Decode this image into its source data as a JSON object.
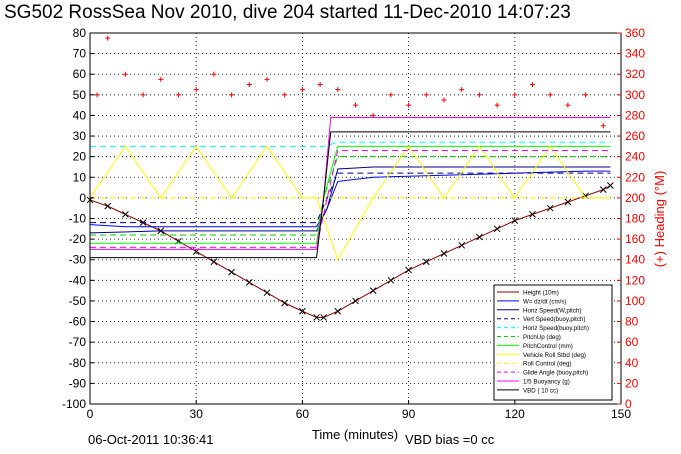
{
  "chart_data": {
    "type": "line",
    "title": "SG502 RossSea Nov 2010, dive 204 started 11-Dec-2010 14:07:23",
    "xlabel": "Time (minutes)",
    "ylabel_right": "(+) Heading (°M)",
    "xlim": [
      0,
      150
    ],
    "ylim_left": [
      -100,
      80
    ],
    "ylim_right": [
      0,
      360
    ],
    "xticks": [
      0,
      30,
      60,
      90,
      120,
      150
    ],
    "yticks_left": [
      -100,
      -90,
      -80,
      -70,
      -60,
      -50,
      -40,
      -30,
      -20,
      -10,
      0,
      10,
      20,
      30,
      40,
      50,
      60,
      70,
      80
    ],
    "yticks_right": [
      0,
      20,
      40,
      60,
      80,
      100,
      120,
      140,
      160,
      180,
      200,
      220,
      240,
      260,
      280,
      300,
      320,
      340,
      360
    ],
    "grid": true,
    "legend_position": "bottom-right",
    "footer_left": "06-Oct-2011 10:36:41",
    "footer_right": "VBD bias =0 cc",
    "series": [
      {
        "name": "Height (10m)",
        "color": "#8b0000",
        "style": "solid",
        "x": [
          0,
          5,
          10,
          15,
          20,
          25,
          30,
          35,
          40,
          45,
          50,
          55,
          60,
          64,
          66,
          70,
          75,
          80,
          85,
          90,
          95,
          100,
          105,
          110,
          115,
          120,
          125,
          130,
          135,
          140,
          145,
          147
        ],
        "y": [
          -1,
          -4,
          -8,
          -12,
          -16,
          -21,
          -26,
          -31,
          -36,
          -41,
          -46,
          -51,
          -55,
          -58,
          -58,
          -55,
          -50,
          -45,
          -40,
          -35,
          -31,
          -27,
          -23,
          -19,
          -15,
          -11,
          -8,
          -5,
          -2,
          1,
          4,
          6
        ]
      },
      {
        "name": "W= dz/dt (cm/s)",
        "color": "#0000ff",
        "style": "solid",
        "x": [
          0,
          10,
          20,
          40,
          60,
          64,
          67,
          70,
          80,
          100,
          120,
          140,
          147
        ],
        "y": [
          -13,
          -14,
          -14,
          -14,
          -14,
          -14,
          -5,
          8,
          10,
          11,
          12,
          13,
          13
        ]
      },
      {
        "name": "Horiz Speed(W,pitch)",
        "color": "#00008b",
        "style": "solid",
        "x": [
          0,
          20,
          40,
          60,
          64,
          67,
          70,
          80,
          100,
          120,
          147
        ],
        "y": [
          -17,
          -16,
          -16,
          -16,
          -16,
          -5,
          14,
          15,
          15,
          15,
          15
        ]
      },
      {
        "name": "Vert Speed(buoy,pitch)",
        "color": "#00008b",
        "style": "dash",
        "x": [
          0,
          64,
          67,
          70,
          147
        ],
        "y": [
          -12,
          -12,
          0,
          12,
          12
        ]
      },
      {
        "name": "Horiz Speed(buoy,pitch)",
        "color": "#00ffff",
        "style": "dash",
        "x": [
          0,
          64,
          66,
          70,
          147
        ],
        "y": [
          25,
          25,
          25,
          27,
          27
        ]
      },
      {
        "name": "PitchUp (deg)",
        "color": "#00cc00",
        "style": "dash",
        "x": [
          0,
          64,
          66,
          70,
          147
        ],
        "y": [
          -18,
          -18,
          0,
          20,
          20
        ]
      },
      {
        "name": "PitchControl (mm)",
        "color": "#00ff00",
        "style": "solid",
        "x": [
          0,
          64,
          66,
          70,
          147
        ],
        "y": [
          -22,
          -22,
          0,
          25,
          25
        ]
      },
      {
        "name": "Vehicle Roll Stbd (deg)",
        "color": "#ffff00",
        "style": "solid",
        "x": [
          0,
          10,
          20,
          30,
          40,
          50,
          60,
          64,
          70,
          80,
          90,
          100,
          110,
          120,
          130,
          140,
          147
        ],
        "y": [
          0,
          25,
          0,
          25,
          0,
          25,
          0,
          0,
          -30,
          0,
          25,
          0,
          25,
          0,
          25,
          0,
          0
        ]
      },
      {
        "name": "Roll Control (deg)",
        "color": "#ffff00",
        "style": "dash",
        "x": [
          0,
          64,
          147
        ],
        "y": [
          0,
          0,
          0
        ]
      },
      {
        "name": "Glide Angle (buoy,pitch)",
        "color": "#ff00ff",
        "style": "dash",
        "x": [
          0,
          64,
          67,
          70,
          147
        ],
        "y": [
          -24,
          -24,
          0,
          23,
          23
        ]
      },
      {
        "name": "1/5 Buoyancy (g)",
        "color": "#ff00ff",
        "style": "solid",
        "x": [
          0,
          64,
          66,
          68,
          147
        ],
        "y": [
          -25,
          -25,
          0,
          39,
          39
        ]
      },
      {
        "name": "VBD ( 10 cc)",
        "color": "#000000",
        "style": "solid",
        "x": [
          0,
          64,
          66,
          68,
          147
        ],
        "y": [
          -29,
          -29,
          0,
          32,
          32
        ]
      }
    ],
    "heading_series": {
      "axis": "right",
      "color": "#ff0000",
      "marker": "+",
      "x": [
        2,
        5,
        10,
        15,
        20,
        25,
        30,
        35,
        40,
        45,
        50,
        55,
        60,
        65,
        70,
        75,
        80,
        85,
        90,
        95,
        100,
        105,
        110,
        115,
        120,
        125,
        130,
        135,
        140,
        145
      ],
      "y": [
        300,
        355,
        320,
        300,
        315,
        300,
        305,
        320,
        300,
        310,
        315,
        300,
        305,
        310,
        305,
        290,
        280,
        300,
        290,
        300,
        295,
        305,
        300,
        290,
        300,
        310,
        300,
        290,
        300,
        270
      ]
    }
  }
}
